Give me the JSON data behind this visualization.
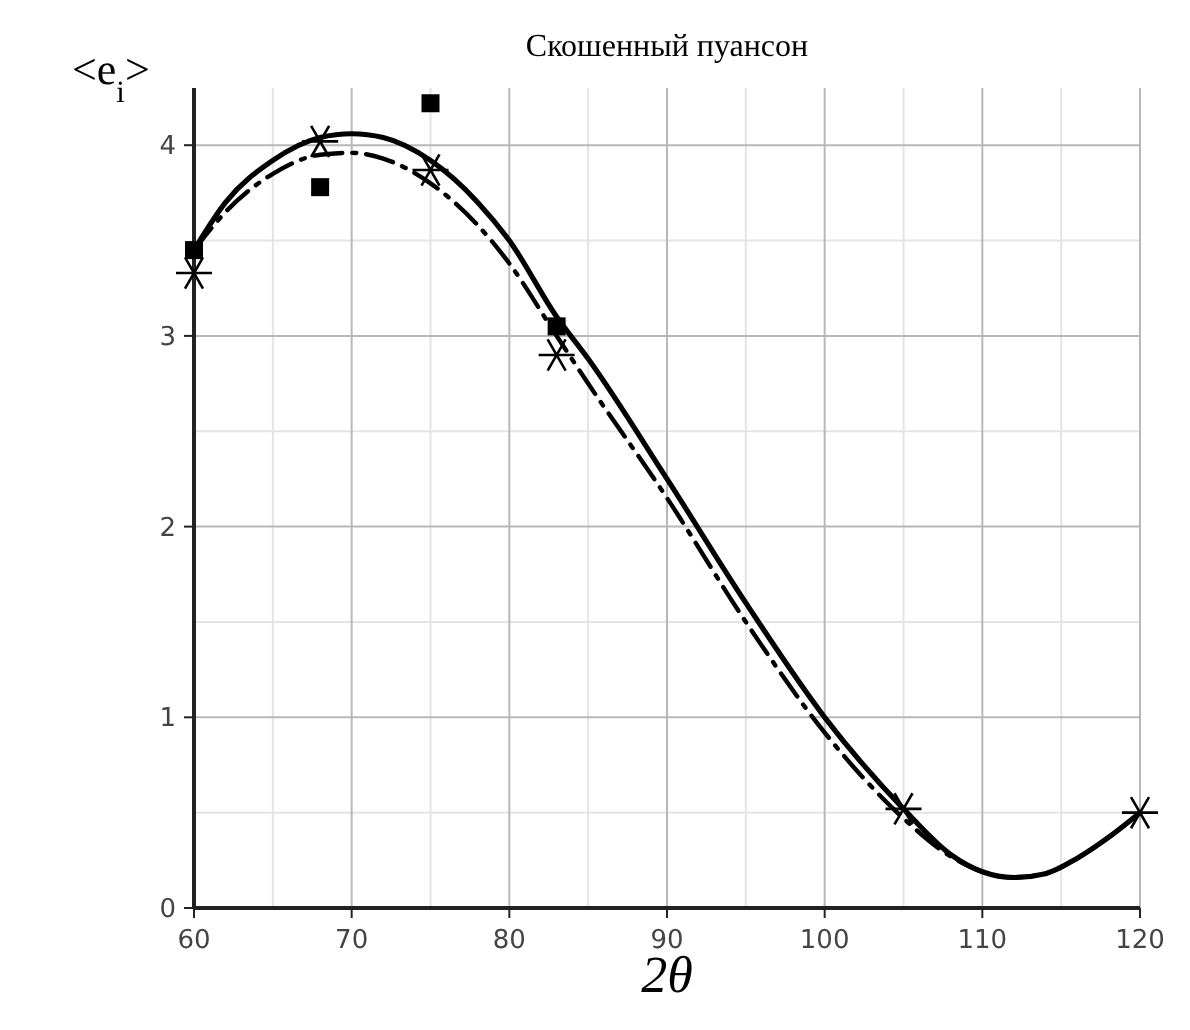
{
  "chart_data": {
    "type": "line",
    "title": "Скошенный пуансон",
    "xlabel": "2θ",
    "ylabel": "<e$_{i}$>",
    "xlim": [
      60,
      120
    ],
    "ylim": [
      0,
      4.3
    ],
    "xticks": [
      60,
      70,
      80,
      90,
      100,
      110,
      120
    ],
    "yticks": [
      0,
      1,
      2,
      3,
      4
    ],
    "grid": true,
    "series": [
      {
        "line_style": "solid",
        "marker": "none",
        "color": "#000000",
        "x": [
          60,
          62,
          65,
          68,
          70,
          72,
          75,
          78,
          80,
          83,
          85,
          90,
          95,
          100,
          105,
          108,
          110,
          112,
          114,
          116,
          118,
          120
        ],
        "values": [
          3.45,
          3.7,
          3.92,
          4.04,
          4.06,
          4.04,
          3.92,
          3.7,
          3.5,
          3.1,
          2.88,
          2.25,
          1.6,
          1.0,
          0.52,
          0.28,
          0.19,
          0.16,
          0.18,
          0.26,
          0.37,
          0.5
        ]
      },
      {
        "line_style": "dashed",
        "marker": "none",
        "color": "#000000",
        "x": [
          60,
          62,
          65,
          68,
          70,
          72,
          75,
          78,
          80,
          83,
          85,
          90,
          95,
          100,
          105,
          108,
          110,
          112,
          114,
          116,
          118,
          120
        ],
        "values": [
          3.45,
          3.65,
          3.85,
          3.95,
          3.96,
          3.93,
          3.8,
          3.58,
          3.38,
          3.0,
          2.75,
          2.15,
          1.5,
          0.92,
          0.47,
          0.27,
          0.19,
          0.16,
          0.18,
          0.26,
          0.37,
          0.5
        ]
      },
      {
        "type": "scatter",
        "marker": "square",
        "color": "#000000",
        "x": [
          60,
          68,
          75,
          83
        ],
        "values": [
          3.45,
          3.78,
          4.22,
          3.05
        ]
      },
      {
        "type": "scatter",
        "marker": "cross",
        "color": "#000000",
        "x": [
          60,
          68,
          75,
          83,
          105,
          120
        ],
        "values": [
          3.33,
          4.02,
          3.87,
          2.9,
          0.52,
          0.5
        ]
      }
    ]
  }
}
